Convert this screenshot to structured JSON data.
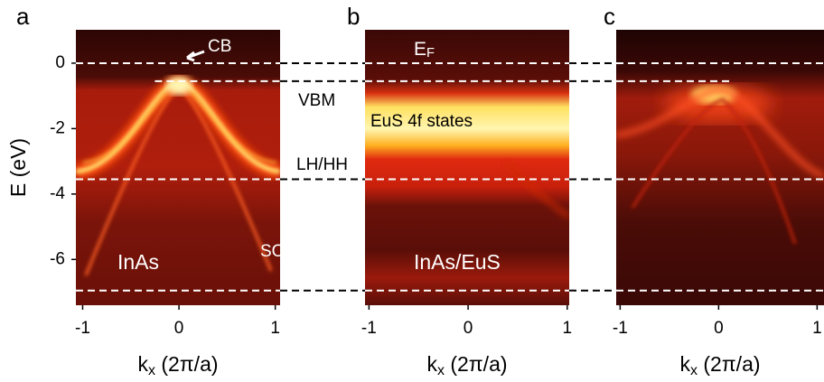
{
  "chart_data": [
    {
      "type": "heatmap",
      "panel": "a",
      "ylabel": "E (eV)",
      "xlabel": [
        "k",
        "x",
        " (2π/a)"
      ],
      "xlim": [
        -1.07,
        1.05
      ],
      "xticks": [
        -1,
        0,
        1
      ],
      "ylim": [
        -7.4,
        1.02
      ],
      "yticks": [
        0,
        -2,
        -4,
        -6
      ],
      "hlines": [
        0,
        -0.55,
        -3.55,
        -6.95
      ],
      "annotations": [
        {
          "text": "CB"
        },
        {
          "text": "VBM"
        },
        {
          "text": "LH/HH"
        },
        {
          "text": "InAs"
        },
        {
          "text": "SO"
        }
      ]
    },
    {
      "type": "heatmap",
      "panel": "b",
      "xlabel": [
        "k",
        "x",
        " (2π/a)"
      ],
      "xlim": [
        -1.04,
        1.02
      ],
      "xticks": [
        -1,
        0,
        1
      ],
      "ylim": [
        -7.4,
        1.02
      ],
      "hlines": [
        0,
        -0.55,
        -3.55,
        -6.95
      ],
      "annotations": [
        {
          "text": "E",
          "sub": "F"
        },
        {
          "text": "EuS 4f states"
        },
        {
          "text": "InAs/EuS"
        }
      ]
    },
    {
      "type": "heatmap",
      "panel": "c",
      "xlabel": [
        "k",
        "x",
        " (2π/a)"
      ],
      "xlim": [
        -1.04,
        1.07
      ],
      "xticks": [
        -1,
        0,
        1
      ],
      "ylim": [
        -7.4,
        1.02
      ],
      "hlines": [
        0,
        -0.55,
        -3.55,
        -6.95
      ],
      "annotations": []
    }
  ]
}
